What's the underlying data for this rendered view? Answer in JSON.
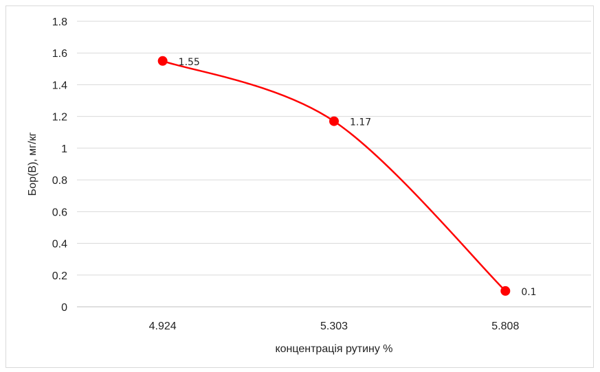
{
  "chart_data": {
    "type": "line",
    "categories": [
      "4.924",
      "5.303",
      "5.808"
    ],
    "series": [
      {
        "values": [
          1.55,
          1.17,
          0.1
        ],
        "color": "#ff0000",
        "smooth": true,
        "markers": true
      }
    ],
    "data_labels": [
      "1.55",
      "1.17",
      "0.1"
    ],
    "title": "",
    "xlabel": "концентрація рутину %",
    "ylabel": "Бор(В), мг/кг",
    "ylim": [
      0,
      1.8
    ],
    "yticks": [
      "0",
      "0.2",
      "0.4",
      "0.6",
      "0.8",
      "1",
      "1.2",
      "1.4",
      "1.6",
      "1.8"
    ],
    "grid": true,
    "legend": "none"
  }
}
